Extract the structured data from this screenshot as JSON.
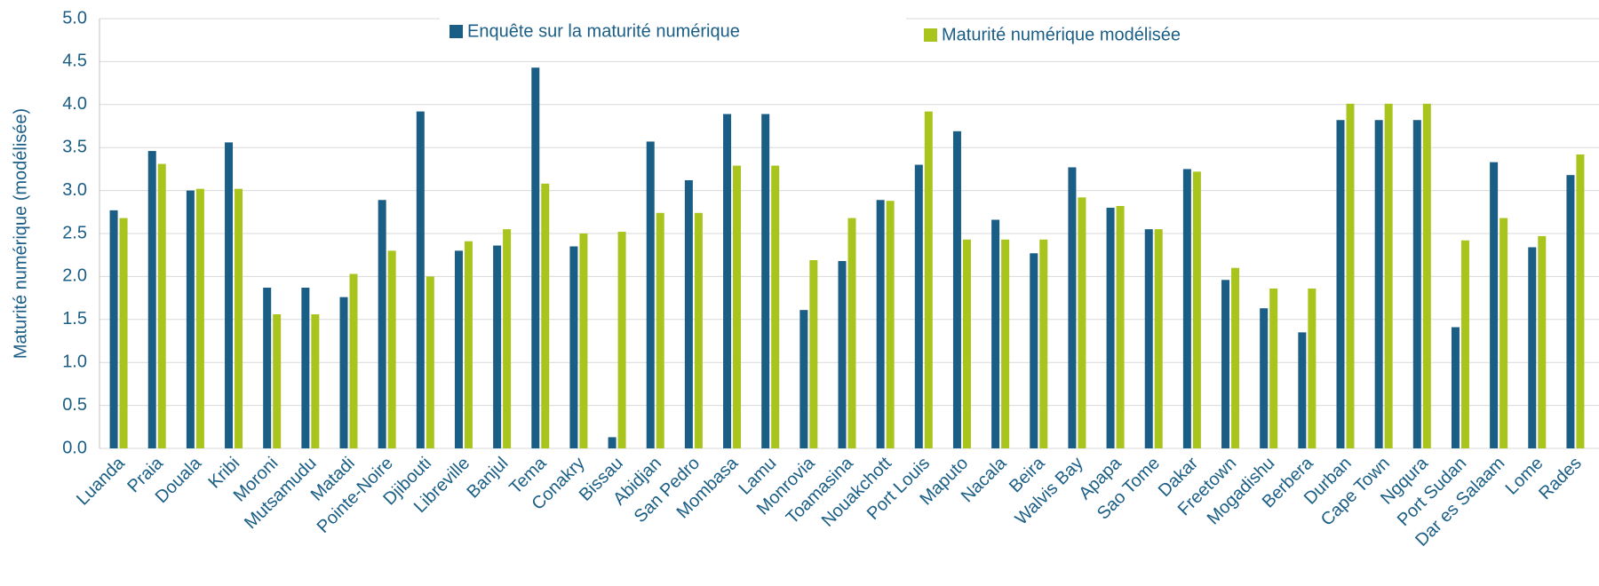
{
  "chart_data": {
    "type": "bar",
    "y_label": "Maturité numérique (modélisée)",
    "categories": [
      "Luanda",
      "Praia",
      "Douala",
      "Kribi",
      "Moroni",
      "Mutsamudu",
      "Matadi",
      "Pointe-Noire",
      "Djibouti",
      "Libreville",
      "Banjul",
      "Tema",
      "Conakry",
      "Bissau",
      "Abidjan",
      "San Pedro",
      "Mombasa",
      "Lamu",
      "Monrovia",
      "Toamasina",
      "Nouakchott",
      "Port Louis",
      "Maputo",
      "Nacala",
      "Beira",
      "Walvis Bay",
      "Apapa",
      "Sao Tome",
      "Dakar",
      "Freetown",
      "Mogadishu",
      "Berbera",
      "Durban",
      "Cape Town",
      "Ngqura",
      "Port Sudan",
      "Dar es Salaam",
      "Lome",
      "Rades"
    ],
    "series": [
      {
        "name": "Enquête sur la maturité numérique",
        "color": "#1b5e85",
        "values": [
          2.77,
          3.46,
          3.0,
          3.56,
          1.87,
          1.87,
          1.76,
          2.89,
          3.92,
          2.3,
          2.36,
          4.43,
          2.35,
          0.13,
          3.57,
          3.12,
          3.89,
          3.89,
          1.61,
          2.18,
          2.89,
          3.3,
          3.69,
          2.66,
          2.27,
          3.27,
          2.8,
          2.55,
          3.25,
          1.96,
          1.63,
          1.35,
          3.82,
          3.82,
          3.82,
          1.41,
          3.33,
          2.34,
          3.18
        ]
      },
      {
        "name": "Maturité numérique modélisée",
        "color": "#a9c41d",
        "values": [
          2.68,
          3.31,
          3.02,
          3.02,
          1.56,
          1.56,
          2.03,
          2.3,
          2.0,
          2.41,
          2.55,
          3.08,
          2.5,
          2.52,
          2.74,
          2.74,
          3.29,
          3.29,
          2.19,
          2.68,
          2.88,
          3.92,
          2.43,
          2.43,
          2.43,
          2.92,
          2.82,
          2.55,
          3.22,
          2.1,
          1.86,
          1.86,
          4.01,
          4.01,
          4.01,
          2.42,
          2.68,
          2.47,
          3.42
        ]
      }
    ],
    "ylim": [
      0,
      5
    ],
    "yticks": [
      {
        "value": 0,
        "label": "0.0"
      },
      0.5,
      {
        "value": 1,
        "label": "1.0"
      },
      1.5,
      {
        "value": 2,
        "label": "2.0"
      },
      2.5,
      {
        "value": 3,
        "label": "3.0"
      },
      3.5,
      {
        "value": 4,
        "label": "4.0"
      },
      4.5,
      {
        "value": 5,
        "label": "5.0"
      }
    ],
    "grid": true
  }
}
